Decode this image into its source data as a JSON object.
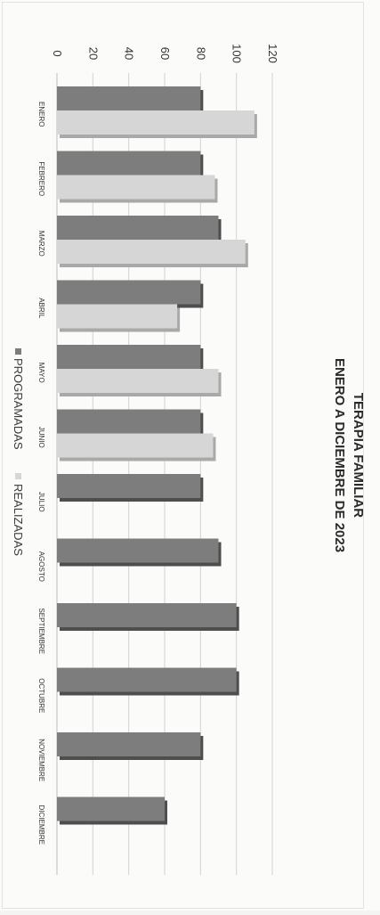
{
  "chart_data": {
    "type": "bar",
    "title": "TERAPIA FAMILIAR",
    "subtitle": "ENERO A DICIEMBRE DE 2023",
    "categories": [
      "ENERO",
      "FEBRERO",
      "MARZO",
      "ABRIL",
      "MAYO",
      "JUNIO",
      "JULIO",
      "AGOSTO",
      "SEPTIEMBRE",
      "OCTUBRE",
      "NOVIEMBRE",
      "DICIEMBRE"
    ],
    "series": [
      {
        "name": "PROGRAMADAS",
        "color": "#7d7d7d",
        "values": [
          80,
          80,
          90,
          80,
          80,
          80,
          80,
          90,
          100,
          100,
          80,
          60
        ]
      },
      {
        "name": "REALIZADAS",
        "color": "#d6d6d6",
        "values": [
          110,
          88,
          105,
          67,
          90,
          87,
          null,
          null,
          null,
          null,
          null,
          null
        ]
      }
    ],
    "yticks": [
      0,
      20,
      40,
      60,
      80,
      100,
      120
    ],
    "ylim": [
      0,
      120
    ],
    "grid": true,
    "legend": "bottom",
    "orientation": "rotated-90"
  }
}
